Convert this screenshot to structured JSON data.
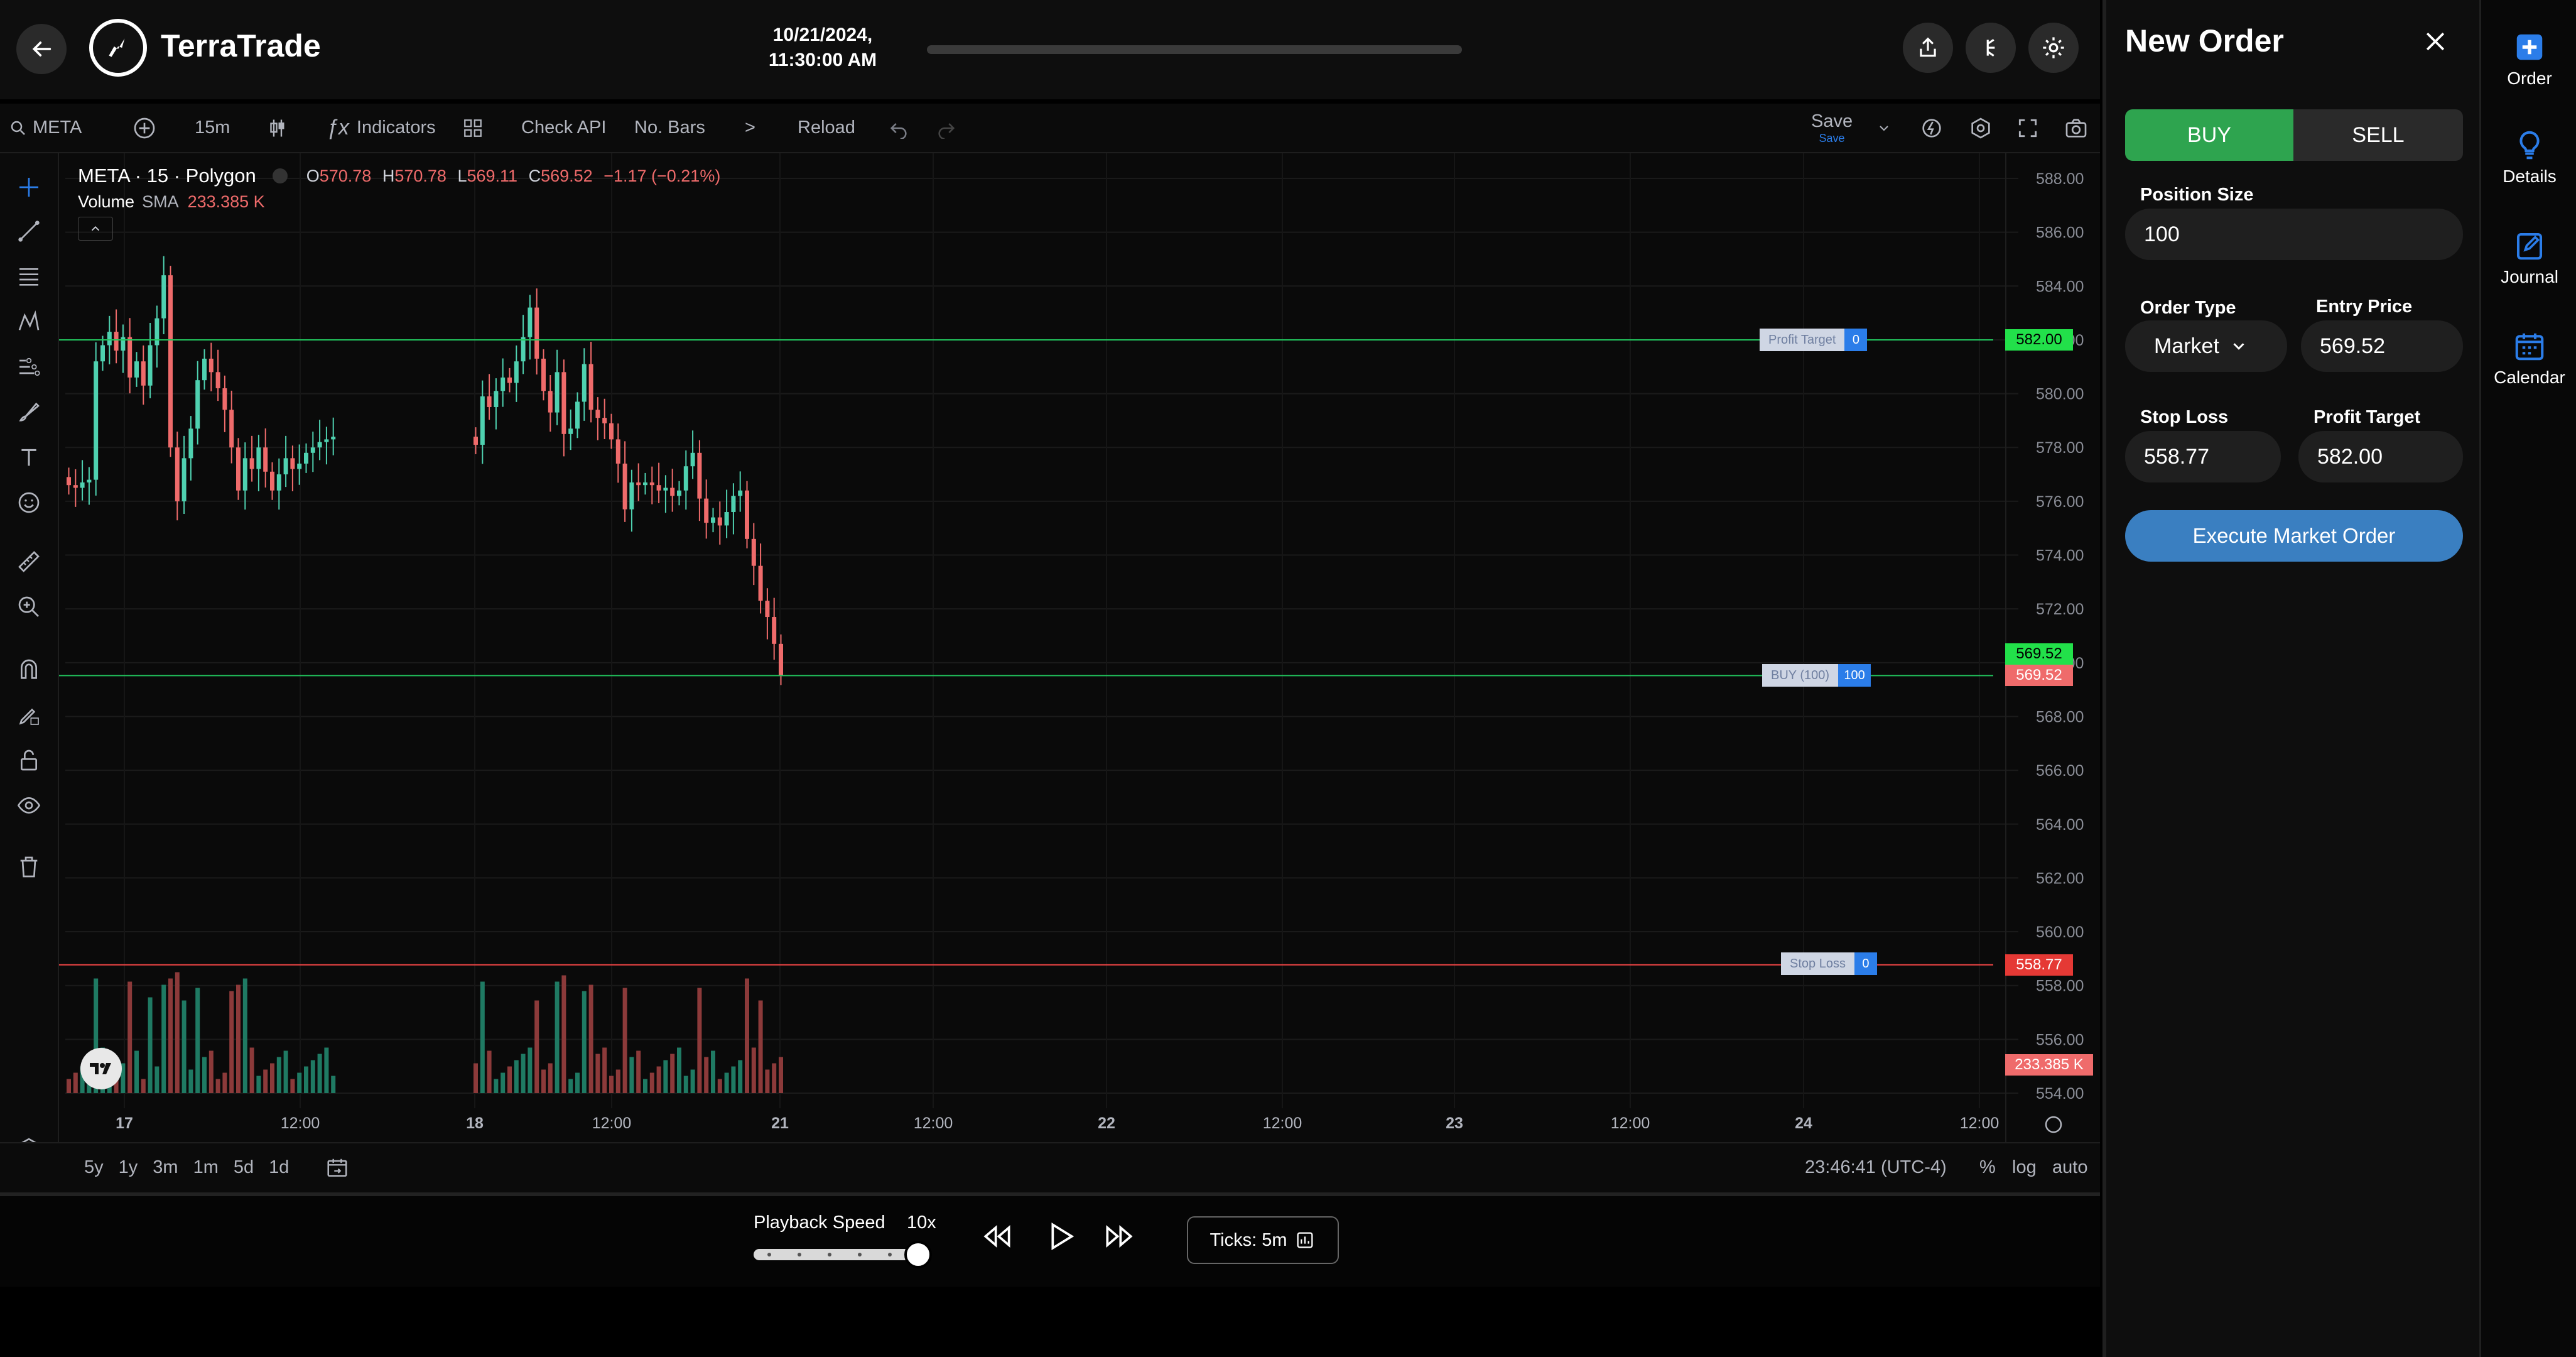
{
  "header": {
    "brand": "TerraTrade",
    "datetime_line1": "10/21/2024,",
    "datetime_line2": "11:30:00 AM",
    "icons": [
      "back-arrow-icon",
      "share-icon",
      "theme-toggle-icon",
      "gear-icon"
    ]
  },
  "toolbar": {
    "symbol": "META",
    "interval": "15m",
    "indicators": "Indicators",
    "check_api": "Check API",
    "no_bars": "No. Bars",
    "more": ">",
    "reload": "Reload",
    "save": "Save",
    "save_sub": "Save"
  },
  "legend": {
    "title": "META · 15 · Polygon",
    "o_label": "O",
    "o_val": "570.78",
    "h_label": "H",
    "h_val": "570.78",
    "l_label": "L",
    "l_val": "569.11",
    "c_label": "C",
    "c_val": "569.52",
    "change": "−1.17 (−0.21%)",
    "volume_label": "Volume",
    "sma_label": "SMA",
    "volume_val": "233.385 K"
  },
  "lines": {
    "profit_target_label": "Profit Target",
    "profit_target_qty": "0",
    "profit_target_price": "582.00",
    "buy_label": "BUY (100)",
    "buy_qty": "100",
    "buy_price_green": "569.52",
    "buy_price_red": "569.52",
    "stop_loss_label": "Stop Loss",
    "stop_loss_qty": "0",
    "stop_loss_price": "558.77",
    "volume_tag": "233.385 K"
  },
  "chart_data": {
    "type": "candlestick",
    "symbol": "META",
    "interval": "15m",
    "ylim": [
      554,
      588
    ],
    "y_ticks": [
      "588.00",
      "586.00",
      "584.00",
      "582.00",
      "580.00",
      "578.00",
      "576.00",
      "574.00",
      "572.00",
      "570.00",
      "568.00",
      "566.00",
      "564.00",
      "562.00",
      "560.00",
      "558.00",
      "556.00",
      "554.00"
    ],
    "x_ticks": [
      "17",
      "12:00",
      "18",
      "12:00",
      "21",
      "12:00",
      "22",
      "12:00",
      "23",
      "12:00",
      "24",
      "12:00"
    ],
    "sessions": [
      {
        "day": "17",
        "closes": [
          576.6,
          576.5,
          576.7,
          576.8,
          581.2,
          581.8,
          582.3,
          581.6,
          582.1,
          580.6,
          581.2,
          580.3,
          581.8,
          582.8,
          584.4,
          578.0,
          576.0,
          577.6,
          578.7,
          580.5,
          581.3,
          580.8,
          580.2,
          579.4,
          578.0,
          576.4,
          577.6,
          577.2,
          578.0,
          577.1,
          576.4,
          577.0,
          577.6,
          577.2,
          577.4,
          577.8,
          578.0,
          578.2,
          578.3,
          578.4
        ]
      },
      {
        "day": "18",
        "closes": [
          578.1,
          579.9,
          579.5,
          580.1,
          580.6,
          580.4,
          581.2,
          582.1,
          583.2,
          581.3,
          580.1,
          579.3,
          580.8,
          578.5,
          578.7,
          579.7,
          581.1,
          579.4,
          579.1,
          578.9,
          578.3,
          577.4,
          575.7,
          576.7,
          576.6,
          576.7,
          576.6,
          576.4,
          576.5,
          576.2,
          576.4,
          577.3,
          577.8,
          576.1,
          575.2,
          575.4,
          575.1,
          575.6,
          576.2,
          576.4,
          574.6,
          573.6,
          572.3,
          571.7,
          570.7,
          569.52
        ]
      }
    ],
    "volume": {
      "last": "233.385 K"
    },
    "horizontal_lines": [
      {
        "label": "Profit Target",
        "price": 582.0,
        "color": "#22c55e"
      },
      {
        "label": "BUY (100)",
        "price": 569.52,
        "color": "#22c55e"
      },
      {
        "label": "Stop Loss",
        "price": 558.77,
        "color": "#ef4444"
      }
    ]
  },
  "bottom": {
    "ranges": [
      "5y",
      "1y",
      "3m",
      "1m",
      "5d",
      "1d"
    ],
    "clock": "23:46:41 (UTC-4)",
    "pct": "%",
    "log": "log",
    "auto": "auto"
  },
  "playback": {
    "speed_label": "Playback Speed",
    "speed_value": "10x",
    "speed_level": 1.0,
    "ticks": "Ticks: 5m"
  },
  "order": {
    "title": "New Order",
    "buy": "BUY",
    "sell": "SELL",
    "position_size_label": "Position Size",
    "position_size": "100",
    "order_type_label": "Order Type",
    "order_type": "Market",
    "entry_price_label": "Entry Price",
    "entry_price": "569.52",
    "stop_loss_label": "Stop Loss",
    "stop_loss": "558.77",
    "profit_target_label": "Profit Target",
    "profit_target": "582.00",
    "execute": "Execute Market Order"
  },
  "sidenav": {
    "order": "Order",
    "details": "Details",
    "journal": "Journal",
    "calendar": "Calendar"
  },
  "colors": {
    "up": "#4fd1b0",
    "down": "#ef6b6b",
    "buy_green": "#2ea44f",
    "execute_blue": "#3a7fc1",
    "accent_blue": "#2b7de9"
  }
}
